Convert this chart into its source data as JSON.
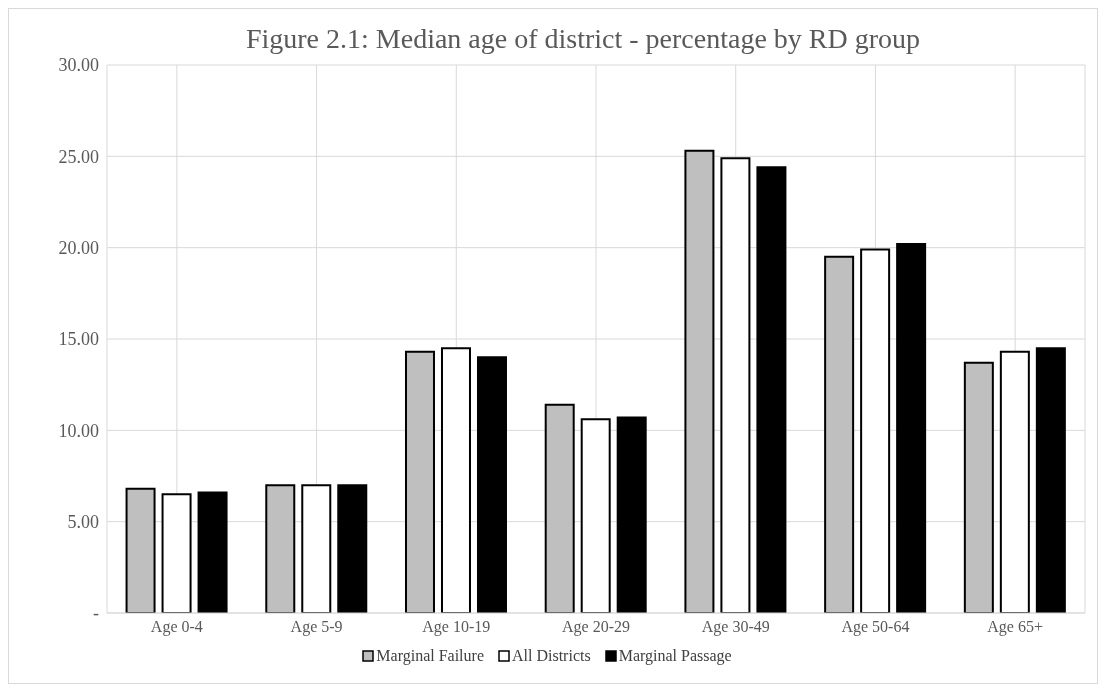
{
  "chart_data": {
    "type": "bar",
    "title": "Figure 2.1: Median age of district - percentage by RD group",
    "categories": [
      "Age 0-4",
      "Age 5-9",
      "Age 10-19",
      "Age 20-29",
      "Age 30-49",
      "Age 50-64",
      "Age 65+"
    ],
    "series": [
      {
        "name": "Marginal Failure",
        "color": "#bfbfbf",
        "values": [
          6.8,
          7.0,
          14.3,
          11.4,
          25.3,
          19.5,
          13.7
        ]
      },
      {
        "name": "All Districts",
        "color": "#ffffff",
        "values": [
          6.5,
          7.0,
          14.5,
          10.6,
          24.9,
          19.9,
          14.3
        ]
      },
      {
        "name": "Marginal Passage",
        "color": "#000000",
        "values": [
          6.6,
          7.0,
          14.0,
          10.7,
          24.4,
          20.2,
          14.5
        ]
      }
    ],
    "ylim": [
      0,
      30
    ],
    "yticks": [
      {
        "value": 0,
        "label": "-"
      },
      {
        "value": 5,
        "label": "5.00"
      },
      {
        "value": 10,
        "label": "10.00"
      },
      {
        "value": 15,
        "label": "15.00"
      },
      {
        "value": 20,
        "label": "20.00"
      },
      {
        "value": 25,
        "label": "25.00"
      },
      {
        "value": 30,
        "label": "30.00"
      }
    ],
    "grid": true,
    "legend": "bottom"
  }
}
